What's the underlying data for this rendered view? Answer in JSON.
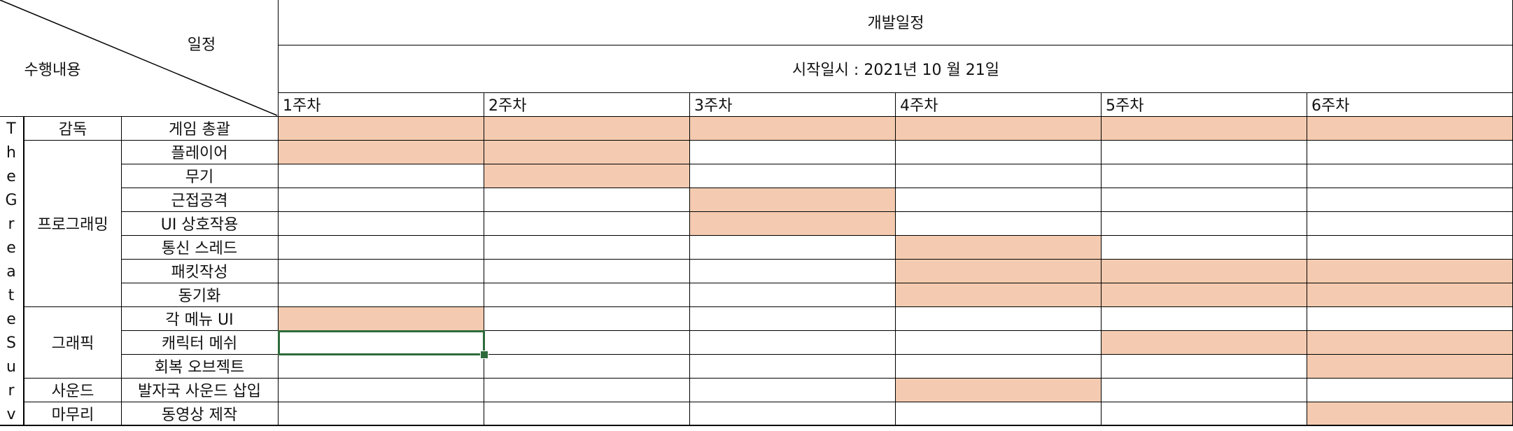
{
  "header": {
    "corner_top": "일정",
    "corner_bottom": "수행내용",
    "title": "개발일정",
    "start_date": "시작일시 : 2021년  10 월 21일"
  },
  "weeks": [
    "1주차",
    "2주차",
    "3주차",
    "4주차",
    "5주차",
    "6주차"
  ],
  "project_letters": [
    "T",
    "h",
    "e",
    "G",
    "r",
    "e",
    "a",
    "t",
    "e",
    "S",
    "u",
    "r",
    "v"
  ],
  "groups": [
    {
      "label": "감독",
      "rows": [
        0
      ]
    },
    {
      "label": "프로그래밍",
      "rows": [
        1,
        2,
        3,
        4,
        5,
        6,
        7
      ]
    },
    {
      "label": "그래픽",
      "rows": [
        8,
        9,
        10
      ]
    },
    {
      "label": "사운드",
      "rows": [
        11
      ]
    },
    {
      "label": "마무리",
      "rows": [
        12
      ]
    }
  ],
  "tasks": [
    {
      "name": "게임 총괄",
      "weeks": [
        1,
        1,
        1,
        1,
        1,
        1
      ]
    },
    {
      "name": "플레이어",
      "weeks": [
        1,
        1,
        0,
        0,
        0,
        0
      ]
    },
    {
      "name": "무기",
      "weeks": [
        0,
        1,
        0,
        0,
        0,
        0
      ]
    },
    {
      "name": "근접공격",
      "weeks": [
        0,
        0,
        1,
        0,
        0,
        0
      ]
    },
    {
      "name": "UI 상호작용",
      "weeks": [
        0,
        0,
        1,
        0,
        0,
        0
      ]
    },
    {
      "name": "통신 스레드",
      "weeks": [
        0,
        0,
        0,
        1,
        0,
        0
      ]
    },
    {
      "name": "패킷작성",
      "weeks": [
        0,
        0,
        0,
        1,
        1,
        1
      ]
    },
    {
      "name": "동기화",
      "weeks": [
        0,
        0,
        0,
        1,
        1,
        1
      ]
    },
    {
      "name": "각 메뉴 UI",
      "weeks": [
        1,
        0,
        0,
        0,
        0,
        0
      ]
    },
    {
      "name": "캐릭터 메쉬",
      "weeks": [
        0,
        0,
        0,
        0,
        1,
        1
      ]
    },
    {
      "name": "회복 오브젝트",
      "weeks": [
        0,
        0,
        0,
        0,
        0,
        1
      ]
    },
    {
      "name": "발자국 사운드 삽입",
      "weeks": [
        0,
        0,
        0,
        1,
        0,
        0
      ]
    },
    {
      "name": "동영상 제작",
      "weeks": [
        0,
        0,
        0,
        0,
        0,
        1
      ]
    }
  ],
  "selection": {
    "row": 9,
    "week": 0
  },
  "colors": {
    "fill": "#f4cbb0",
    "selection": "#2e6b3b",
    "grid": "#000000"
  }
}
